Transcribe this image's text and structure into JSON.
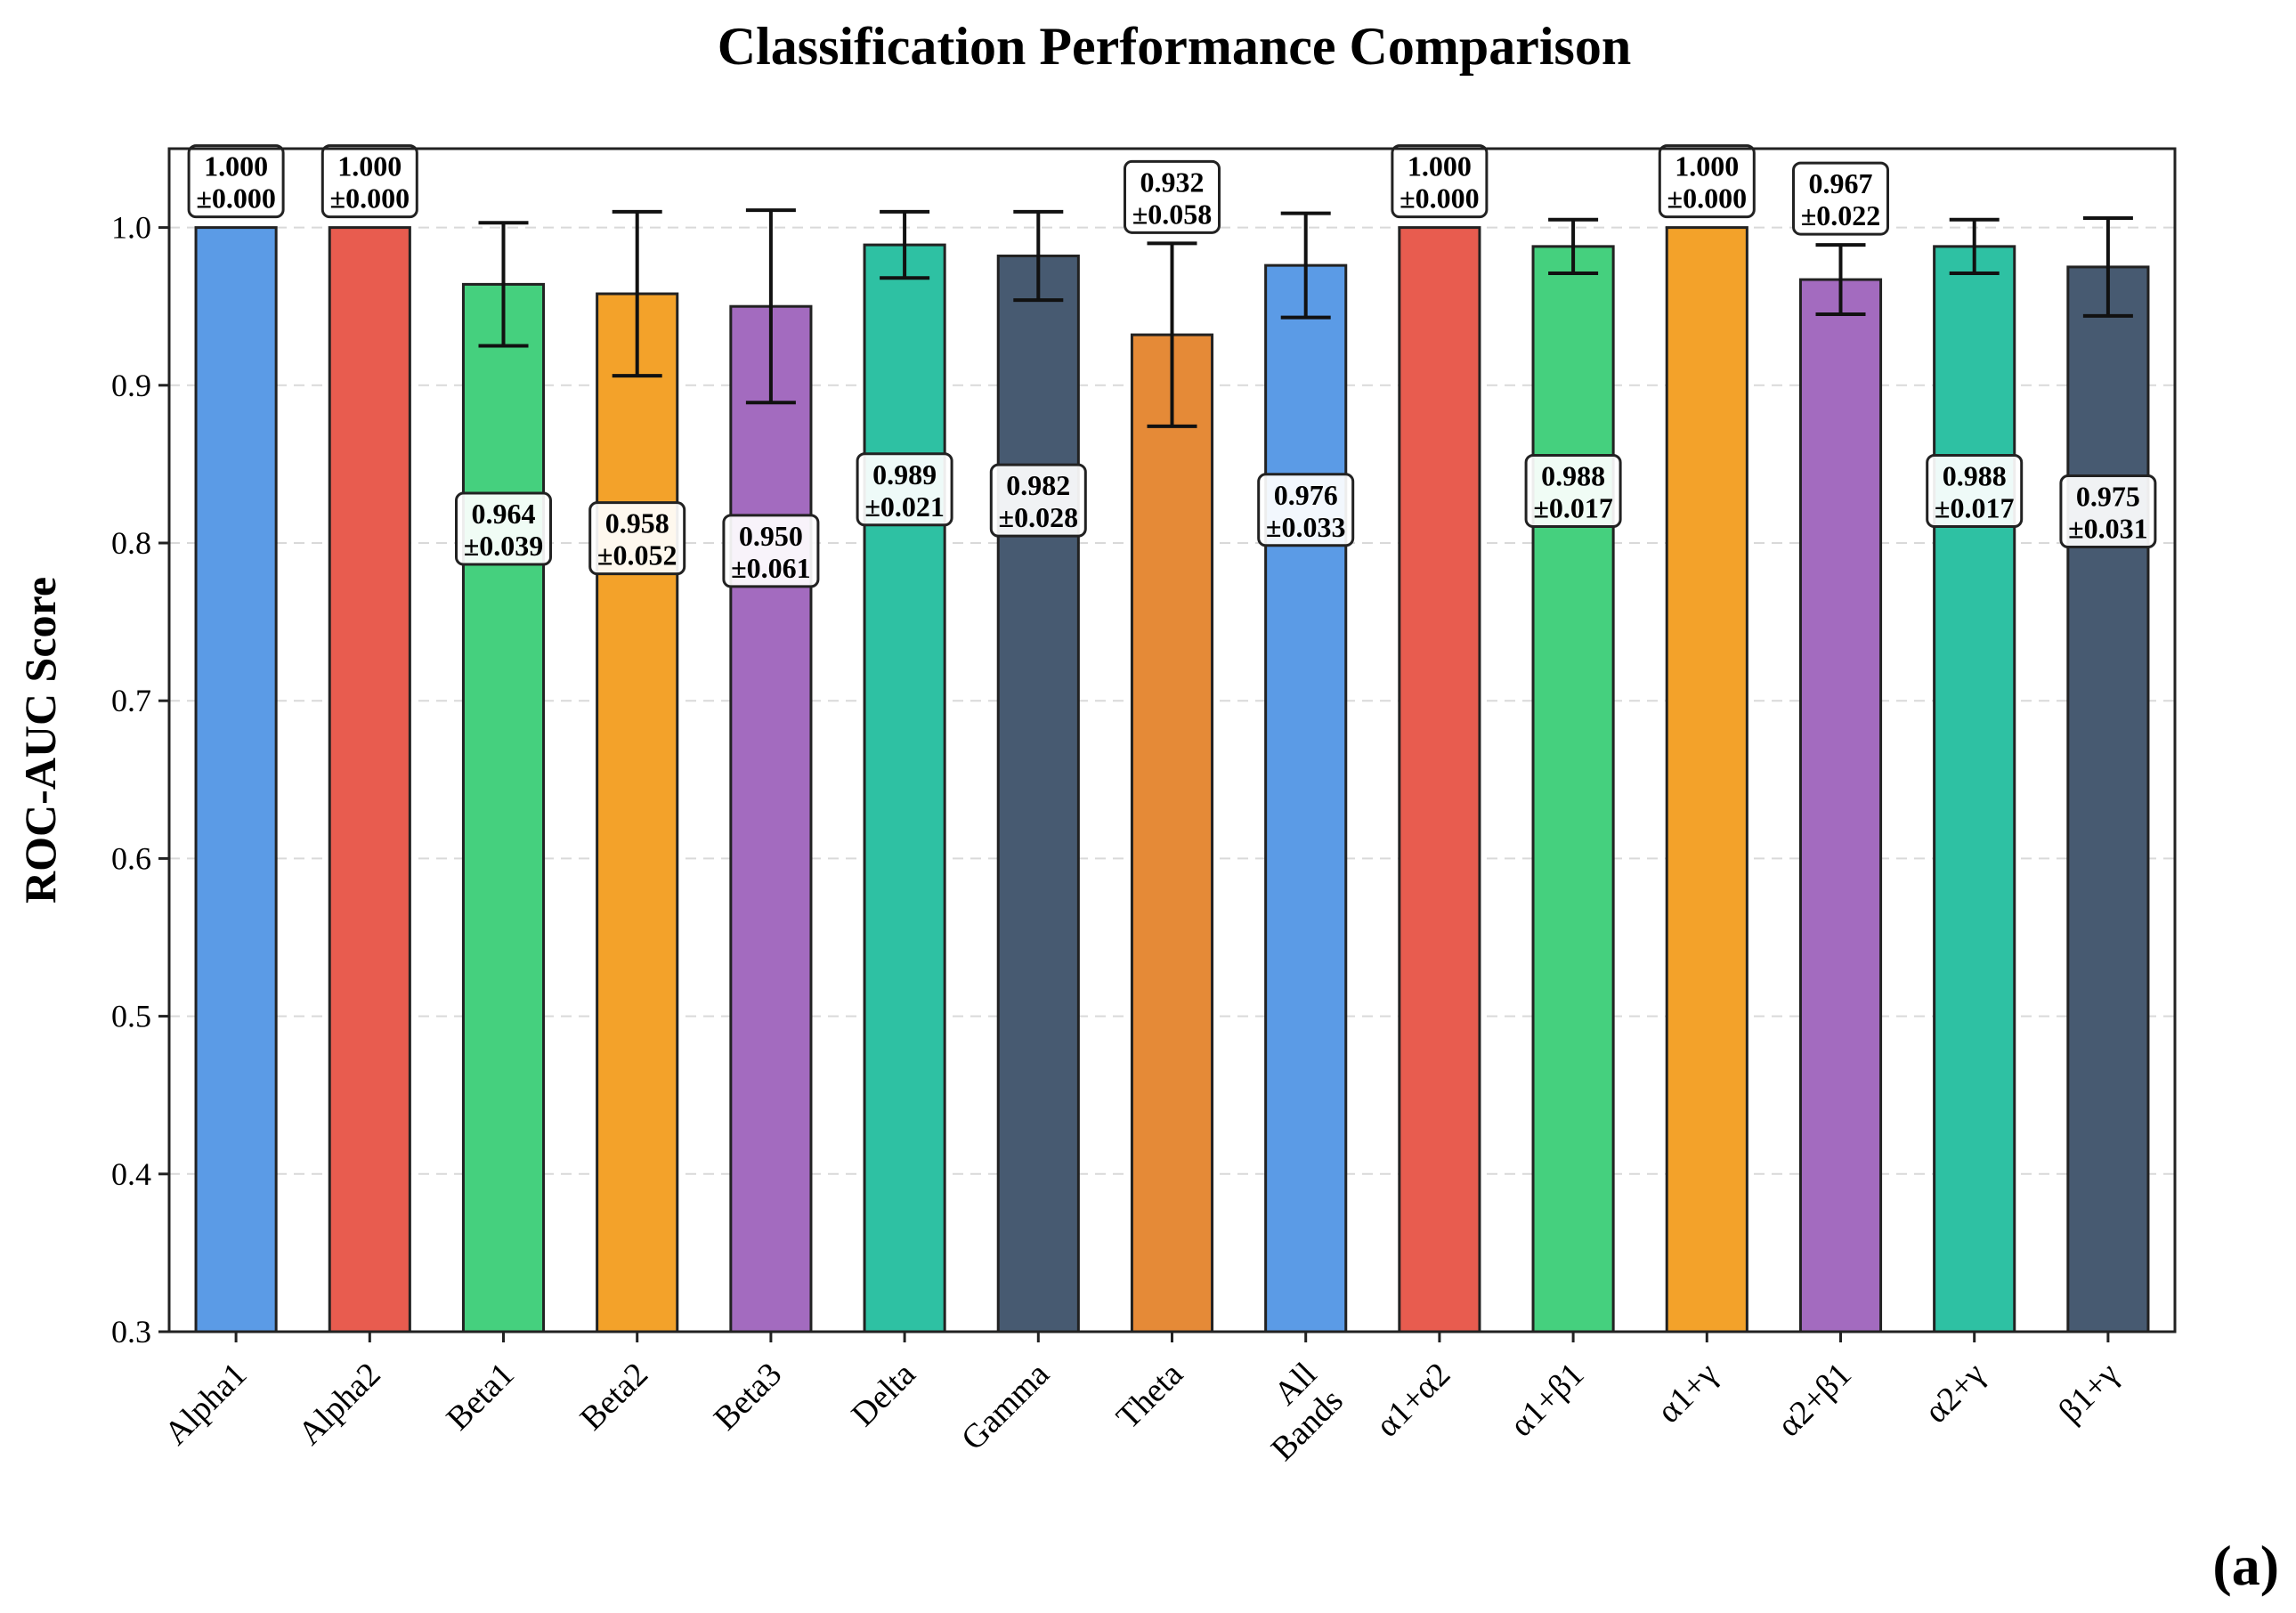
{
  "panel_label": "(a)",
  "chart_data": {
    "type": "bar",
    "title": "Classification Performance Comparison",
    "xlabel": "",
    "ylabel": "ROC-AUC Score",
    "ylim": [
      0.3,
      1.05
    ],
    "yticks": [
      "0.3",
      "0.4",
      "0.5",
      "0.6",
      "0.7",
      "0.8",
      "0.9",
      "1.0"
    ],
    "grid": "horizontal dashed",
    "categories": [
      "Alpha1",
      "Alpha2",
      "Beta1",
      "Beta2",
      "Beta3",
      "Delta",
      "Gamma",
      "Theta",
      "All\nBands",
      "α1+α2",
      "α1+β1",
      "α1+γ",
      "α2+β1",
      "α2+γ",
      "β1+γ"
    ],
    "values": [
      1.0,
      1.0,
      0.964,
      0.958,
      0.95,
      0.989,
      0.982,
      0.932,
      0.976,
      1.0,
      0.988,
      1.0,
      0.967,
      0.988,
      0.975
    ],
    "errors": [
      0.0,
      0.0,
      0.039,
      0.052,
      0.061,
      0.021,
      0.028,
      0.058,
      0.033,
      0.0,
      0.017,
      0.0,
      0.022,
      0.017,
      0.031
    ],
    "value_labels": [
      "1.000",
      "1.000",
      "0.964",
      "0.958",
      "0.950",
      "0.989",
      "0.982",
      "0.932",
      "0.976",
      "1.000",
      "0.988",
      "1.000",
      "0.967",
      "0.988",
      "0.975"
    ],
    "error_labels": [
      "±0.000",
      "±0.000",
      "±0.039",
      "±0.052",
      "±0.061",
      "±0.021",
      "±0.028",
      "±0.058",
      "±0.033",
      "±0.000",
      "±0.017",
      "±0.000",
      "±0.022",
      "±0.017",
      "±0.031"
    ],
    "label_position": [
      "above",
      "above",
      "inside",
      "inside",
      "inside",
      "inside",
      "inside",
      "above",
      "inside",
      "above",
      "inside",
      "above",
      "above",
      "inside",
      "inside"
    ],
    "colors": [
      "#5b9be6",
      "#e85c4f",
      "#45d07e",
      "#f3a22a",
      "#a36bbf",
      "#2ec1a3",
      "#475a71",
      "#e58a37",
      "#5b9be6",
      "#e85c4f",
      "#45d07e",
      "#f3a22a",
      "#a36bbf",
      "#2ec1a3",
      "#475a71"
    ]
  }
}
